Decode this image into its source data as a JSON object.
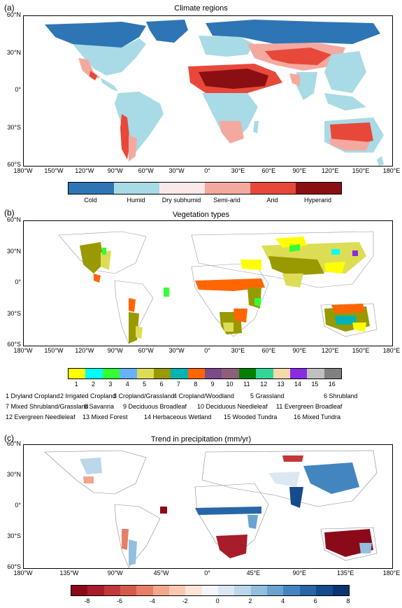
{
  "panel_a": {
    "label": "(a)",
    "title": "Climate regions",
    "lat_labels": [
      "60°N",
      "30°N",
      "0°",
      "30°S",
      "60°S"
    ],
    "lon_labels": [
      "180°W",
      "150°W",
      "120°W",
      "90°W",
      "60°W",
      "30°W",
      "0°",
      "30°E",
      "60°E",
      "90°E",
      "120°E",
      "150°E",
      "180°E"
    ],
    "colorbar": [
      {
        "label": "Cold",
        "color": "#2e75b6"
      },
      {
        "label": "Humid",
        "color": "#a8dbe5"
      },
      {
        "label": "Dry subhumid",
        "color": "#fbe8ea"
      },
      {
        "label": "Semi-arid",
        "color": "#f4a9a0"
      },
      {
        "label": "Arid",
        "color": "#e8483a"
      },
      {
        "label": "Hyperarid",
        "color": "#8a0f13"
      }
    ]
  },
  "panel_b": {
    "label": "(b)",
    "title": "Vegetation types",
    "lat_labels": [
      "60°N",
      "30°N",
      "0°",
      "30°S",
      "60°S"
    ],
    "lon_labels": [
      "180°W",
      "150°W",
      "120°W",
      "90°W",
      "60°W",
      "30°W",
      "0°",
      "30°E",
      "60°E",
      "90°E",
      "120°E",
      "150°E",
      "180°E"
    ],
    "colorbar": [
      {
        "num": "1",
        "color": "#ffff00"
      },
      {
        "num": "2",
        "color": "#00ffff"
      },
      {
        "num": "3",
        "color": "#33ff33"
      },
      {
        "num": "4",
        "color": "#66b2ff"
      },
      {
        "num": "5",
        "color": "#dddd55"
      },
      {
        "num": "6",
        "color": "#999900"
      },
      {
        "num": "7",
        "color": "#00b3b3"
      },
      {
        "num": "8",
        "color": "#ff6600"
      },
      {
        "num": "9",
        "color": "#7a4a8a"
      },
      {
        "num": "10",
        "color": "#8f5f7a"
      },
      {
        "num": "11",
        "color": "#008000"
      },
      {
        "num": "12",
        "color": "#33d699"
      },
      {
        "num": "13",
        "color": "#f5d9a8"
      },
      {
        "num": "14",
        "color": "#8a2be2"
      },
      {
        "num": "15",
        "color": "#c0c0c0"
      },
      {
        "num": "16",
        "color": "#808080"
      }
    ],
    "legend_rows": [
      [
        "1  Dryland Cropland",
        "2 Irrigated Cropland",
        "3  Cropland/Grassland",
        "4  Cropland/Woodland",
        "5  Grassland",
        "6  Shrubland"
      ],
      [
        "7  Mixed Shrubland/Grassland",
        "8 Savanna",
        "9  Deciduous Broadleaf",
        "10 Deciduous Needleleaf",
        "11 Evergreen Broadleaf"
      ],
      [
        "12 Evergreen Needleleaf",
        "13 Mixed Forest",
        "14 Herbaceous Wetland",
        "15 Wooded Tundra",
        "16 Mixed Tundra"
      ]
    ]
  },
  "panel_c": {
    "label": "(c)",
    "title": "Trend in precipitation (mm/yr)",
    "lat_labels": [
      "60°N",
      "30°N",
      "0°",
      "30°S",
      "60°S"
    ],
    "lon_labels": [
      "180°W",
      "135°W",
      "90°W",
      "45°W",
      "0°",
      "45°E",
      "90°E",
      "135°E",
      "180°E"
    ],
    "colorbar_colors": [
      "#8b0a1a",
      "#a81c2b",
      "#c2373a",
      "#d55a4e",
      "#e58067",
      "#f2a68b",
      "#f8c8b1",
      "#fde4d6",
      "#f3f7fb",
      "#dae8f3",
      "#bcd6ea",
      "#93bfdf",
      "#6aa3cf",
      "#4386bf",
      "#2866a8",
      "#154a8c",
      "#0b3470"
    ],
    "colorbar_ticks": [
      "-8",
      "-6",
      "-4",
      "-2",
      "0",
      "2",
      "4",
      "6",
      "8"
    ]
  }
}
